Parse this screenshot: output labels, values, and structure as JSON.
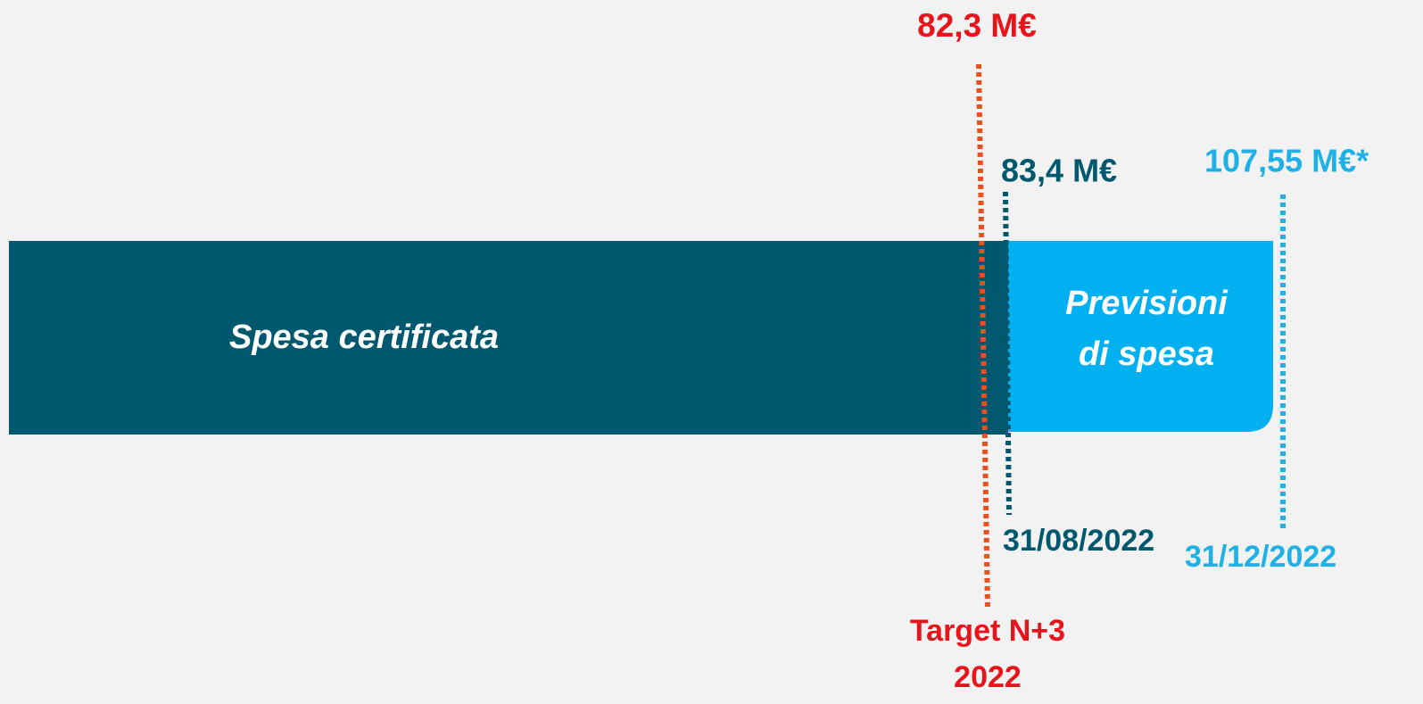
{
  "target_value": "82,3 M€",
  "certified_value": "83,4 M€",
  "forecast_value": "107,55 M€*",
  "bars": [
    {
      "label": [
        "Spesa certificata"
      ]
    },
    {
      "label": [
        "Previsioni",
        "di spesa"
      ]
    }
  ],
  "certified_date": "31/08/2022",
  "forecast_date": "31/12/2022",
  "target_label": [
    "Target N+3",
    "2022"
  ]
}
